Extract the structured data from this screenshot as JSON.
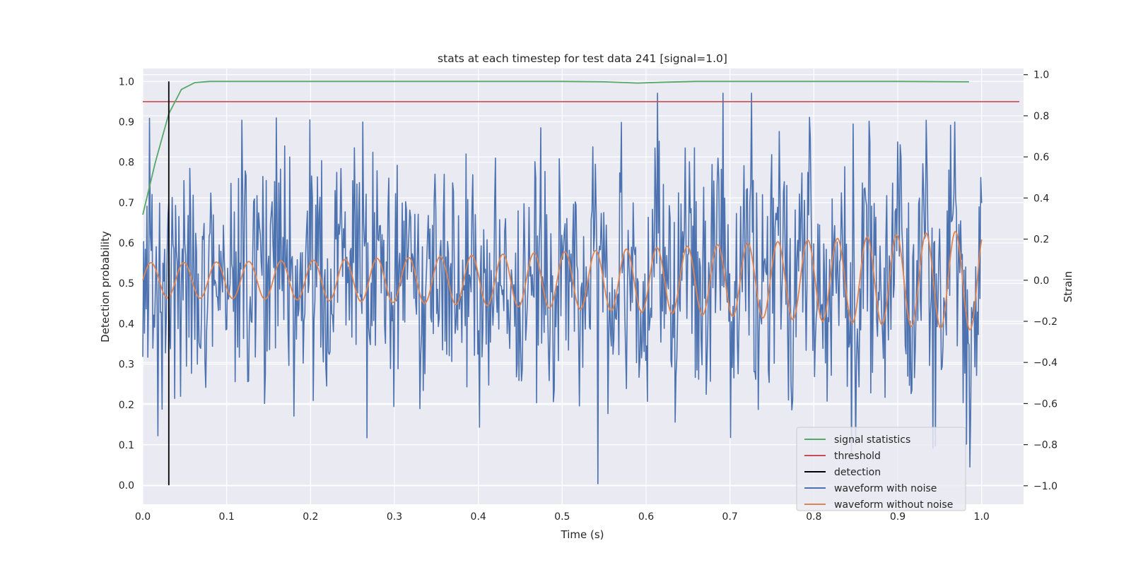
{
  "chart_data": {
    "type": "line",
    "title": "stats at each timestep for test data 241 [signal=1.0]",
    "xlabel": "Time (s)",
    "ylabel_left": "Detection probability",
    "ylabel_right": "Strain",
    "xlim": [
      0.0,
      1.05
    ],
    "ylim_left": [
      -0.047,
      1.032
    ],
    "ylim_right": [
      -1.09,
      1.03
    ],
    "x_ticks": [
      "0.0",
      "0.1",
      "0.2",
      "0.3",
      "0.4",
      "0.5",
      "0.6",
      "0.7",
      "0.8",
      "0.9",
      "1.0"
    ],
    "y_left_ticks": [
      "0.0",
      "0.1",
      "0.2",
      "0.3",
      "0.4",
      "0.5",
      "0.6",
      "0.7",
      "0.8",
      "0.9",
      "1.0"
    ],
    "y_right_ticks": [
      "−1.0",
      "−0.8",
      "−0.6",
      "−0.4",
      "−0.2",
      "0.0",
      "0.2",
      "0.4",
      "0.6",
      "0.8",
      "1.0"
    ],
    "grid": true,
    "legend_position": "lower-right",
    "colors": {
      "signal_statistics": "#55a868",
      "threshold": "#c44e52",
      "detection": "#000000",
      "waveform_with_noise": "#4c72b0",
      "waveform_without_noise": "#dd8452",
      "background": "#eaeaf2",
      "grid": "#ffffff"
    },
    "legend": [
      {
        "label": "signal statistics",
        "color": "#55a868"
      },
      {
        "label": "threshold",
        "color": "#c44e52"
      },
      {
        "label": "detection",
        "color": "#000000"
      },
      {
        "label": "waveform with noise",
        "color": "#4c72b0"
      },
      {
        "label": "waveform without noise",
        "color": "#dd8452"
      }
    ],
    "series": [
      {
        "name": "signal statistics",
        "axis": "left",
        "x": [
          0.0,
          0.015,
          0.031,
          0.046,
          0.062,
          0.08,
          0.1,
          0.2,
          0.3,
          0.4,
          0.5,
          0.55,
          0.59,
          0.62,
          0.66,
          0.7,
          0.8,
          0.9,
          0.985
        ],
        "values": [
          0.67,
          0.8,
          0.92,
          0.98,
          0.997,
          1.0,
          1.0,
          1.0,
          1.0,
          1.0,
          1.0,
          0.999,
          0.996,
          0.998,
          1.0,
          1.0,
          1.0,
          1.0,
          0.999
        ]
      },
      {
        "name": "threshold",
        "axis": "left",
        "x": [
          0.0,
          1.045
        ],
        "values": [
          0.95,
          0.95
        ]
      },
      {
        "name": "detection",
        "axis": "left",
        "x": [
          0.031,
          0.031
        ],
        "values": [
          0.0,
          1.0
        ]
      },
      {
        "name": "waveform with noise",
        "axis": "right",
        "description_free": true,
        "generator": {
          "n_points": 1000,
          "x_start": 0.0,
          "x_end": 1.0,
          "noise_std": 0.3,
          "seed": 241
        },
        "range": [
          -0.99,
          0.91
        ]
      },
      {
        "name": "waveform without noise",
        "axis": "right",
        "generator": {
          "x_start": 0.0,
          "x_end": 1.0,
          "n_points": 1200,
          "f0": 25.5,
          "f1": 28.8,
          "amp0": 0.085,
          "amp1": 0.245,
          "phase": 0.0
        }
      }
    ]
  }
}
